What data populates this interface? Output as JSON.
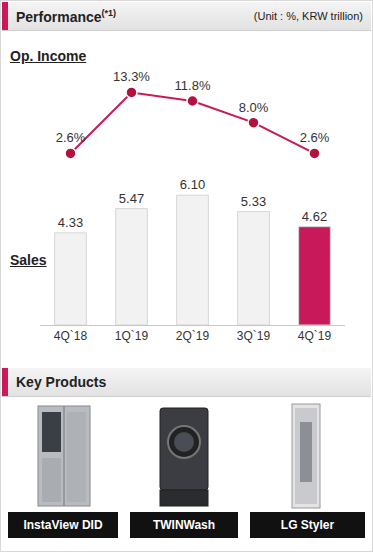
{
  "header": {
    "title": "Performance",
    "superscript": "(*1)",
    "unit": "(Unit : %, KRW trillion)"
  },
  "chart_data": [
    {
      "type": "line",
      "title": "Op. Income",
      "categories": [
        "4Q`18",
        "1Q`19",
        "2Q`19",
        "3Q`19",
        "4Q`19"
      ],
      "values": [
        2.6,
        13.3,
        11.8,
        8.0,
        2.6
      ],
      "value_labels": [
        "2.6%",
        "13.3%",
        "11.8%",
        "8.0%",
        "2.6%"
      ],
      "color": "#c8195a",
      "marker": "circle",
      "data_labels": true,
      "tick_labels": false,
      "ylim": [
        -5,
        22.5
      ]
    },
    {
      "type": "bar",
      "title": "Sales",
      "categories": [
        "4Q`18",
        "1Q`19",
        "2Q`19",
        "3Q`19",
        "4Q`19"
      ],
      "values": [
        4.33,
        5.47,
        6.1,
        5.33,
        4.62
      ],
      "value_labels": [
        "4.33",
        "5.47",
        "6.10",
        "5.33",
        "4.62"
      ],
      "colors": [
        "#f2f2f2",
        "#f2f2f2",
        "#f2f2f2",
        "#f2f2f2",
        "#c8195a"
      ],
      "data_labels": true,
      "tick_labels": "x",
      "ylim": [
        0,
        7.5
      ]
    }
  ],
  "key_products": {
    "title": "Key Products",
    "items": [
      "InstaView DID",
      "TWINWash",
      "LG Styler"
    ]
  }
}
